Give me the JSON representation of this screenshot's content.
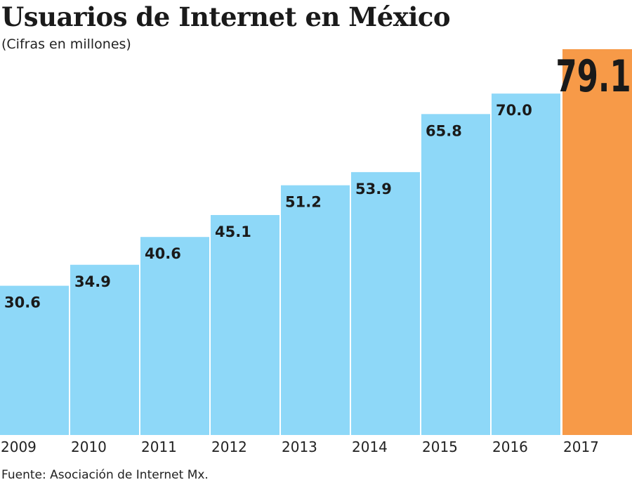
{
  "chart_data": {
    "type": "bar",
    "title": "Usuarios de Internet en México",
    "subtitle": "(Cifras en millones)",
    "source": "Fuente: Asociación de Internet Mx.",
    "categories": [
      "2009",
      "2010",
      "2011",
      "2012",
      "2013",
      "2014",
      "2015",
      "2016",
      "2017"
    ],
    "values": [
      30.6,
      34.9,
      40.6,
      45.1,
      51.2,
      53.9,
      65.8,
      70.0,
      79.1
    ],
    "labels": [
      "30.6",
      "34.9",
      "40.6",
      "45.1",
      "51.2",
      "53.9",
      "65.8",
      "70.0",
      "79.1"
    ],
    "ylim": [
      0,
      79.1
    ],
    "grid": false,
    "colors": {
      "bar": "#8ED8F8",
      "highlight": "#F79A48",
      "highlight_category": "2017"
    }
  }
}
